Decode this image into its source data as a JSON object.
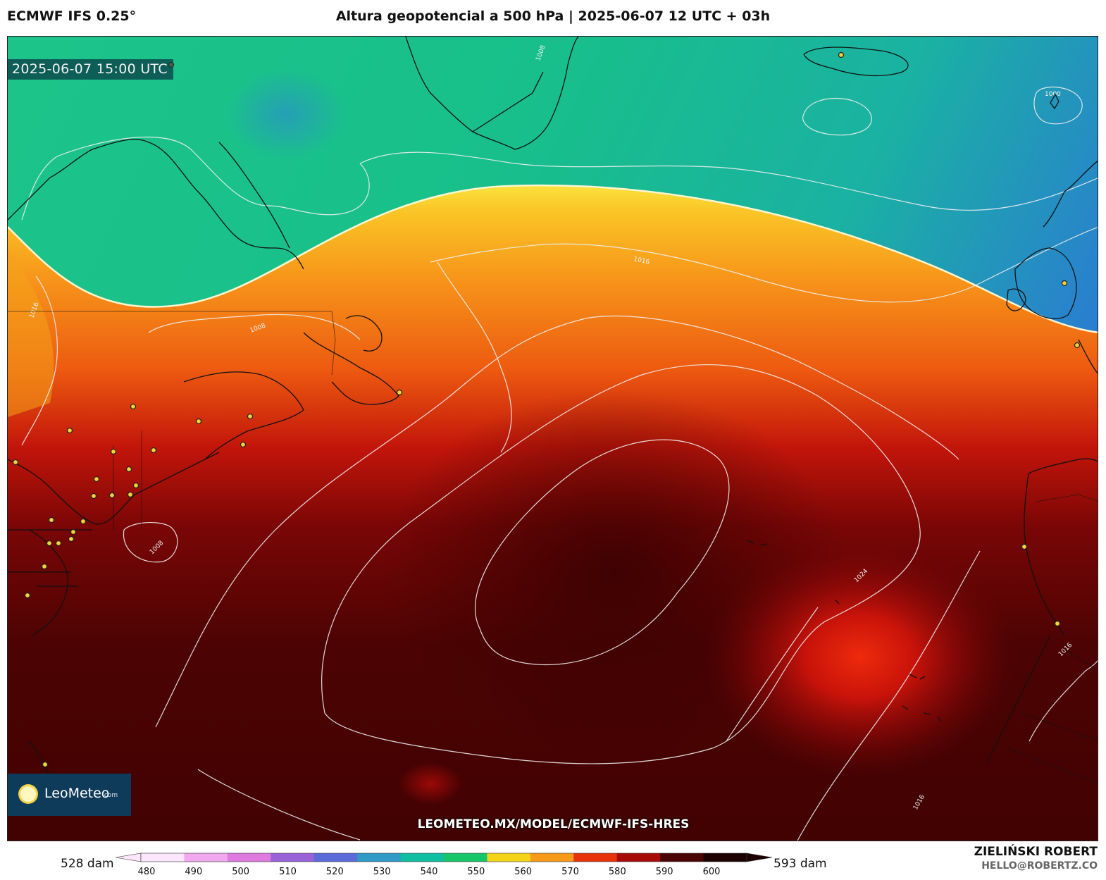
{
  "header": {
    "model": "ECMWF IFS 0.25°",
    "title": "Altura geopotencial a 500 hPa | 2025-06-07 12 UTC + 03h"
  },
  "map": {
    "valid_time": "2025-06-07 15:00 UTC",
    "url": "LEOMETEO.MX/MODEL/ECMWF-IFS-HRES",
    "isobar_labels": [
      "1008",
      "1016",
      "1024",
      "1000",
      "1008",
      "1016",
      "1008",
      "1016",
      "1016"
    ]
  },
  "logo": {
    "name": "LeoMeteo",
    "tld": ".com"
  },
  "legend": {
    "min_label": "528 dam",
    "max_label": "593 dam",
    "ticks": [
      "480",
      "490",
      "500",
      "510",
      "520",
      "530",
      "540",
      "550",
      "560",
      "570",
      "580",
      "590",
      "600"
    ],
    "colors": [
      "#fbe6fb",
      "#f2a8ee",
      "#de7ae0",
      "#9a62d8",
      "#5a6ad8",
      "#2f9ac8",
      "#0fbfa2",
      "#18c66a",
      "#f4d418",
      "#f79a1a",
      "#e8320c",
      "#a80a08",
      "#4a0404",
      "#1c0000"
    ]
  },
  "credit": {
    "author": "ZIELIŃSKI ROBERT",
    "email": "HELLO@ROBERTZ.CO"
  }
}
